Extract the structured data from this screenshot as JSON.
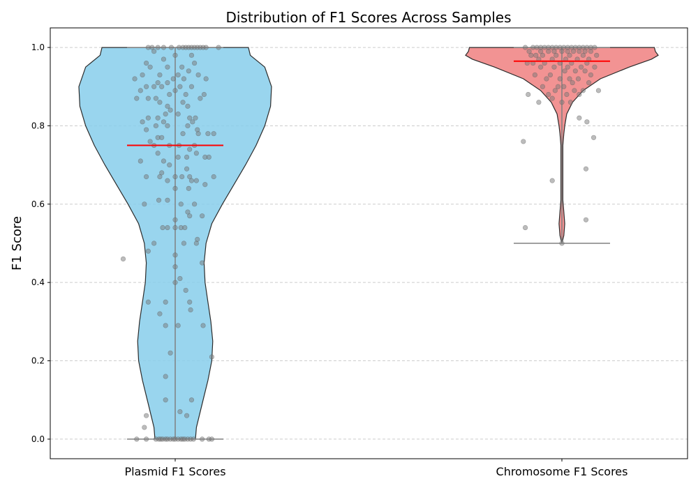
{
  "chart_data": {
    "type": "violin",
    "title": "Distribution of F1 Scores Across Samples",
    "xlabel": "",
    "ylabel": "F1 Score",
    "ylim": [
      -0.05,
      1.05
    ],
    "yticks": [
      0.0,
      0.2,
      0.4,
      0.6,
      0.8,
      1.0
    ],
    "ytick_labels": [
      "0.0",
      "0.2",
      "0.4",
      "0.6",
      "0.8",
      "1.0"
    ],
    "grid": "y-dashed",
    "categories": [
      "Plasmid F1 Scores",
      "Chromosome F1 Scores"
    ],
    "series": [
      {
        "category": "Plasmid F1 Scores",
        "fill_color": "#87CEEB",
        "median": 0.75,
        "min": 0.0,
        "max": 1.0,
        "density_profile": [
          [
            0.0,
            0.21
          ],
          [
            0.03,
            0.22
          ],
          [
            0.06,
            0.25
          ],
          [
            0.1,
            0.29
          ],
          [
            0.15,
            0.34
          ],
          [
            0.2,
            0.38
          ],
          [
            0.25,
            0.39
          ],
          [
            0.3,
            0.37
          ],
          [
            0.35,
            0.34
          ],
          [
            0.4,
            0.31
          ],
          [
            0.45,
            0.3
          ],
          [
            0.5,
            0.32
          ],
          [
            0.55,
            0.38
          ],
          [
            0.6,
            0.49
          ],
          [
            0.65,
            0.61
          ],
          [
            0.7,
            0.73
          ],
          [
            0.75,
            0.84
          ],
          [
            0.8,
            0.93
          ],
          [
            0.85,
            0.99
          ],
          [
            0.9,
            1.0
          ],
          [
            0.95,
            0.93
          ],
          [
            0.98,
            0.78
          ],
          [
            1.0,
            0.76
          ]
        ],
        "points": [
          [
            -0.4,
            0.0
          ],
          [
            -0.3,
            0.0
          ],
          [
            -0.2,
            0.0
          ],
          [
            -0.17,
            0.0
          ],
          [
            -0.15,
            0.0
          ],
          [
            -0.13,
            0.0
          ],
          [
            -0.1,
            0.0
          ],
          [
            -0.08,
            0.0
          ],
          [
            -0.05,
            0.0
          ],
          [
            -0.02,
            0.0
          ],
          [
            0.0,
            0.0
          ],
          [
            0.03,
            0.0
          ],
          [
            0.06,
            0.0
          ],
          [
            0.08,
            0.0
          ],
          [
            0.1,
            0.0
          ],
          [
            0.13,
            0.0
          ],
          [
            0.16,
            0.0
          ],
          [
            0.19,
            0.0
          ],
          [
            0.28,
            0.0
          ],
          [
            0.35,
            0.0
          ],
          [
            0.38,
            0.0
          ],
          [
            -0.32,
            0.03
          ],
          [
            -0.3,
            0.06
          ],
          [
            0.05,
            0.07
          ],
          [
            0.12,
            0.06
          ],
          [
            -0.1,
            0.1
          ],
          [
            0.17,
            0.1
          ],
          [
            -0.1,
            0.16
          ],
          [
            -0.05,
            0.22
          ],
          [
            0.38,
            0.21
          ],
          [
            -0.16,
            0.32
          ],
          [
            0.16,
            0.33
          ],
          [
            -0.28,
            0.35
          ],
          [
            -0.1,
            0.35
          ],
          [
            0.15,
            0.35
          ],
          [
            0.11,
            0.38
          ],
          [
            0.05,
            0.41
          ],
          [
            -0.1,
            0.29
          ],
          [
            0.03,
            0.29
          ],
          [
            0.29,
            0.29
          ],
          [
            0.0,
            0.4
          ],
          [
            0.28,
            0.45
          ],
          [
            0.0,
            0.47
          ],
          [
            0.0,
            0.44
          ],
          [
            -0.54,
            0.46
          ],
          [
            -0.28,
            0.48
          ],
          [
            -0.22,
            0.5
          ],
          [
            0.09,
            0.5
          ],
          [
            0.23,
            0.51
          ],
          [
            0.22,
            0.5
          ],
          [
            -0.13,
            0.54
          ],
          [
            -0.08,
            0.54
          ],
          [
            0.0,
            0.54
          ],
          [
            0.06,
            0.54
          ],
          [
            0.1,
            0.54
          ],
          [
            0.28,
            0.57
          ],
          [
            0.0,
            0.56
          ],
          [
            0.15,
            0.57
          ],
          [
            -0.32,
            0.6
          ],
          [
            -0.17,
            0.61
          ],
          [
            -0.08,
            0.61
          ],
          [
            0.06,
            0.6
          ],
          [
            0.13,
            0.58
          ],
          [
            0.2,
            0.6
          ],
          [
            0.0,
            0.64
          ],
          [
            0.14,
            0.64
          ],
          [
            0.31,
            0.65
          ],
          [
            -0.08,
            0.66
          ],
          [
            0.22,
            0.66
          ],
          [
            -0.3,
            0.67
          ],
          [
            -0.16,
            0.67
          ],
          [
            0.07,
            0.67
          ],
          [
            0.15,
            0.67
          ],
          [
            0.17,
            0.66
          ],
          [
            0.4,
            0.67
          ],
          [
            0.0,
            0.67
          ],
          [
            -0.14,
            0.68
          ],
          [
            -0.06,
            0.7
          ],
          [
            0.12,
            0.69
          ],
          [
            -0.36,
            0.71
          ],
          [
            -0.12,
            0.71
          ],
          [
            0.03,
            0.72
          ],
          [
            0.12,
            0.72
          ],
          [
            0.31,
            0.72
          ],
          [
            0.35,
            0.72
          ],
          [
            -0.18,
            0.73
          ],
          [
            0.15,
            0.74
          ],
          [
            0.22,
            0.73
          ],
          [
            -0.22,
            0.75
          ],
          [
            -0.06,
            0.75
          ],
          [
            0.04,
            0.75
          ],
          [
            0.2,
            0.75
          ],
          [
            -0.26,
            0.76
          ],
          [
            -0.18,
            0.77
          ],
          [
            -0.14,
            0.77
          ],
          [
            0.08,
            0.78
          ],
          [
            0.24,
            0.78
          ],
          [
            0.34,
            0.78
          ],
          [
            -0.3,
            0.79
          ],
          [
            -0.2,
            0.8
          ],
          [
            -0.08,
            0.8
          ],
          [
            0.13,
            0.8
          ],
          [
            0.23,
            0.79
          ],
          [
            0.4,
            0.78
          ],
          [
            -0.34,
            0.81
          ],
          [
            -0.18,
            0.82
          ],
          [
            -0.12,
            0.81
          ],
          [
            0.18,
            0.81
          ],
          [
            0.21,
            0.82
          ],
          [
            -0.28,
            0.82
          ],
          [
            -0.1,
            0.83
          ],
          [
            -0.05,
            0.84
          ],
          [
            0.03,
            0.83
          ],
          [
            0.15,
            0.82
          ],
          [
            -0.16,
            0.86
          ],
          [
            -0.08,
            0.85
          ],
          [
            0.08,
            0.86
          ],
          [
            0.13,
            0.85
          ],
          [
            0.26,
            0.87
          ],
          [
            -0.4,
            0.87
          ],
          [
            -0.28,
            0.87
          ],
          [
            -0.2,
            0.87
          ],
          [
            -0.06,
            0.88
          ],
          [
            0.0,
            0.89
          ],
          [
            0.11,
            0.88
          ],
          [
            0.3,
            0.88
          ],
          [
            -0.36,
            0.89
          ],
          [
            -0.22,
            0.9
          ],
          [
            -0.14,
            0.9
          ],
          [
            0.05,
            0.9
          ],
          [
            0.17,
            0.9
          ],
          [
            -0.3,
            0.9
          ],
          [
            -0.18,
            0.91
          ],
          [
            -0.08,
            0.91
          ],
          [
            -0.02,
            0.92
          ],
          [
            0.09,
            0.92
          ],
          [
            0.24,
            0.93
          ],
          [
            -0.42,
            0.92
          ],
          [
            -0.34,
            0.93
          ],
          [
            -0.16,
            0.93
          ],
          [
            0.03,
            0.93
          ],
          [
            0.14,
            0.94
          ],
          [
            0.32,
            0.92
          ],
          [
            -0.26,
            0.95
          ],
          [
            -0.08,
            0.95
          ],
          [
            0.07,
            0.95
          ],
          [
            0.2,
            0.96
          ],
          [
            -0.3,
            0.96
          ],
          [
            -0.12,
            0.97
          ],
          [
            0.0,
            0.98
          ],
          [
            0.17,
            0.98
          ],
          [
            -0.22,
            0.99
          ],
          [
            -0.28,
            1.0
          ],
          [
            -0.24,
            1.0
          ],
          [
            -0.18,
            1.0
          ],
          [
            -0.12,
            1.0
          ],
          [
            -0.04,
            1.0
          ],
          [
            0.04,
            1.0
          ],
          [
            0.08,
            1.0
          ],
          [
            0.11,
            1.0
          ],
          [
            0.14,
            1.0
          ],
          [
            0.17,
            1.0
          ],
          [
            0.2,
            1.0
          ],
          [
            0.23,
            1.0
          ],
          [
            0.26,
            1.0
          ],
          [
            0.29,
            1.0
          ],
          [
            0.32,
            1.0
          ],
          [
            0.45,
            1.0
          ]
        ]
      },
      {
        "category": "Chromosome F1 Scores",
        "fill_color": "#F08080",
        "median": 0.965,
        "min": 0.5,
        "max": 1.0,
        "density_profile": [
          [
            0.5,
            0.0
          ],
          [
            0.52,
            0.02
          ],
          [
            0.55,
            0.03
          ],
          [
            0.58,
            0.02
          ],
          [
            0.61,
            0.01
          ],
          [
            0.65,
            0.01
          ],
          [
            0.7,
            0.01
          ],
          [
            0.75,
            0.01
          ],
          [
            0.78,
            0.02
          ],
          [
            0.8,
            0.03
          ],
          [
            0.83,
            0.05
          ],
          [
            0.86,
            0.11
          ],
          [
            0.89,
            0.22
          ],
          [
            0.92,
            0.4
          ],
          [
            0.95,
            0.7
          ],
          [
            0.97,
            0.93
          ],
          [
            0.98,
            1.0
          ],
          [
            0.99,
            0.97
          ],
          [
            1.0,
            0.96
          ]
        ],
        "points": [
          [
            -0.38,
            0.54
          ],
          [
            0.25,
            0.56
          ],
          [
            -0.1,
            0.66
          ],
          [
            0.0,
            0.5
          ],
          [
            0.25,
            0.69
          ],
          [
            -0.4,
            0.76
          ],
          [
            0.33,
            0.77
          ],
          [
            0.26,
            0.81
          ],
          [
            0.18,
            0.82
          ],
          [
            -0.24,
            0.86
          ],
          [
            0.0,
            0.86
          ],
          [
            0.09,
            0.86
          ],
          [
            -0.1,
            0.87
          ],
          [
            0.05,
            0.88
          ],
          [
            0.18,
            0.88
          ],
          [
            -0.35,
            0.88
          ],
          [
            -0.14,
            0.88
          ],
          [
            -0.07,
            0.89
          ],
          [
            0.13,
            0.89
          ],
          [
            0.22,
            0.89
          ],
          [
            0.38,
            0.89
          ],
          [
            0.02,
            0.9
          ],
          [
            -0.2,
            0.9
          ],
          [
            -0.04,
            0.9
          ],
          [
            0.11,
            0.91
          ],
          [
            0.28,
            0.91
          ],
          [
            -0.16,
            0.92
          ],
          [
            -0.02,
            0.92
          ],
          [
            0.08,
            0.92
          ],
          [
            0.17,
            0.92
          ],
          [
            0.3,
            0.93
          ],
          [
            -0.28,
            0.93
          ],
          [
            -0.12,
            0.93
          ],
          [
            0.03,
            0.94
          ],
          [
            0.14,
            0.94
          ],
          [
            0.24,
            0.94
          ],
          [
            -0.22,
            0.95
          ],
          [
            -0.08,
            0.95
          ],
          [
            0.06,
            0.95
          ],
          [
            0.2,
            0.95
          ],
          [
            0.34,
            0.95
          ],
          [
            -0.3,
            0.96
          ],
          [
            -0.18,
            0.96
          ],
          [
            -0.02,
            0.96
          ],
          [
            0.1,
            0.96
          ],
          [
            0.26,
            0.96
          ],
          [
            -0.36,
            0.96
          ],
          [
            -0.24,
            0.97
          ],
          [
            -0.1,
            0.97
          ],
          [
            0.04,
            0.97
          ],
          [
            0.16,
            0.97
          ],
          [
            0.28,
            0.97
          ],
          [
            -0.32,
            0.98
          ],
          [
            -0.2,
            0.98
          ],
          [
            -0.06,
            0.98
          ],
          [
            0.08,
            0.98
          ],
          [
            0.22,
            0.98
          ],
          [
            0.36,
            0.98
          ],
          [
            -0.27,
            0.98
          ],
          [
            -0.14,
            0.99
          ],
          [
            0.0,
            0.99
          ],
          [
            0.12,
            0.99
          ],
          [
            0.24,
            0.99
          ],
          [
            -0.34,
            0.99
          ],
          [
            -0.22,
            0.99
          ],
          [
            -0.08,
            0.99
          ],
          [
            0.06,
            0.99
          ],
          [
            0.18,
            0.99
          ],
          [
            0.3,
            0.99
          ],
          [
            -0.3,
            1.0
          ],
          [
            -0.26,
            1.0
          ],
          [
            -0.22,
            1.0
          ],
          [
            -0.18,
            1.0
          ],
          [
            -0.14,
            1.0
          ],
          [
            -0.1,
            1.0
          ],
          [
            -0.06,
            1.0
          ],
          [
            -0.02,
            1.0
          ],
          [
            0.02,
            1.0
          ],
          [
            0.06,
            1.0
          ],
          [
            0.1,
            1.0
          ],
          [
            0.14,
            1.0
          ],
          [
            0.18,
            1.0
          ],
          [
            0.22,
            1.0
          ],
          [
            0.26,
            1.0
          ],
          [
            0.3,
            1.0
          ],
          [
            -0.38,
            1.0
          ],
          [
            0.34,
            1.0
          ]
        ]
      }
    ]
  }
}
